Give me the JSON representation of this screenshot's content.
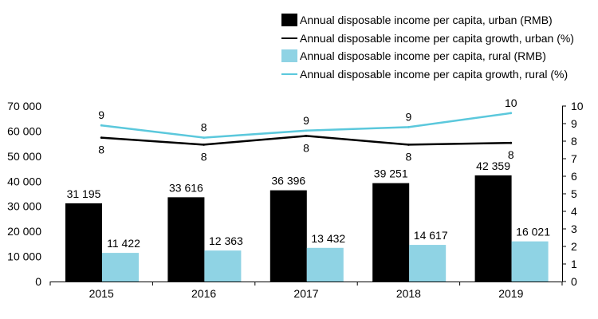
{
  "chart_data": {
    "type": "bar",
    "categories": [
      "2015",
      "2016",
      "2017",
      "2018",
      "2019"
    ],
    "series": [
      {
        "name": "Annual disposable income per capita, urban (RMB)",
        "kind": "bar",
        "axis": "left",
        "color": "#000000",
        "values": [
          31195,
          33616,
          36396,
          39251,
          42359
        ],
        "labels": [
          "31 195",
          "33 616",
          "36 396",
          "39 251",
          "42 359"
        ]
      },
      {
        "name": "Annual disposable income per capita growth, urban (%)",
        "kind": "line",
        "axis": "right",
        "color": "#000000",
        "values": [
          8.2,
          7.8,
          8.3,
          7.8,
          7.9
        ],
        "labels": [
          "8",
          "8",
          "8",
          "8",
          "8"
        ]
      },
      {
        "name": "Annual disposable income per capita, rural (RMB)",
        "kind": "bar",
        "axis": "left",
        "color": "#8fd3e4",
        "values": [
          11422,
          12363,
          13432,
          14617,
          16021
        ],
        "labels": [
          "11 422",
          "12 363",
          "13 432",
          "14 617",
          "16 021"
        ]
      },
      {
        "name": "Annual disposable income per capita growth, rural (%)",
        "kind": "line",
        "axis": "right",
        "color": "#5bc8dc",
        "values": [
          8.9,
          8.2,
          8.6,
          8.8,
          9.6
        ],
        "labels": [
          "9",
          "8",
          "9",
          "9",
          "10"
        ]
      }
    ],
    "left_axis": {
      "ylim": [
        0,
        70000
      ],
      "ticks": [
        "0",
        "10 000",
        "20 000",
        "30 000",
        "40 000",
        "50 000",
        "60 000",
        "70 000"
      ]
    },
    "right_axis": {
      "ylim": [
        0,
        10
      ],
      "ticks": [
        "0",
        "1",
        "2",
        "3",
        "4",
        "5",
        "6",
        "7",
        "8",
        "9",
        "10"
      ]
    },
    "title": "",
    "xlabel": "",
    "ylabel": "",
    "grid": false,
    "legend_position": "top-right"
  }
}
